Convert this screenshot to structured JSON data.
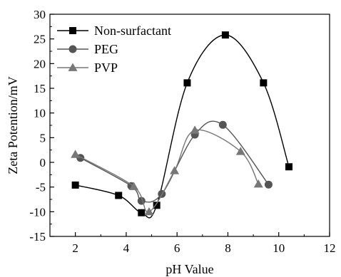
{
  "chart_data": {
    "type": "line",
    "title": "",
    "xlabel": "pH Value",
    "ylabel": "Zeta Potention/mV",
    "xlim": [
      1,
      12
    ],
    "ylim": [
      -15,
      30
    ],
    "xticks": [
      2,
      4,
      6,
      8,
      10,
      12
    ],
    "yticks": [
      -15,
      -10,
      -5,
      0,
      5,
      10,
      15,
      20,
      25,
      30
    ],
    "grid": false,
    "legend_position": "top-left",
    "series": [
      {
        "name": "Non-surfactant",
        "marker": "square",
        "color": "#000000",
        "x": [
          2.0,
          3.7,
          4.6,
          5.2,
          6.4,
          7.9,
          9.4,
          10.4
        ],
        "y": [
          -4.6,
          -6.7,
          -10.2,
          -8.7,
          16.1,
          25.8,
          16.1,
          -0.9
        ]
      },
      {
        "name": "PEG",
        "marker": "circle",
        "color": "#555555",
        "x": [
          2.2,
          4.2,
          4.6,
          5.4,
          6.7,
          7.8,
          9.6
        ],
        "y": [
          0.9,
          -4.8,
          -7.8,
          -6.4,
          5.6,
          7.6,
          -4.5
        ]
      },
      {
        "name": "PVP",
        "marker": "triangle",
        "color": "#777777",
        "x": [
          2.0,
          4.3,
          4.9,
          5.9,
          6.7,
          8.5,
          9.2
        ],
        "y": [
          1.6,
          -4.9,
          -10.0,
          -1.7,
          6.5,
          2.2,
          -4.4
        ]
      }
    ]
  }
}
